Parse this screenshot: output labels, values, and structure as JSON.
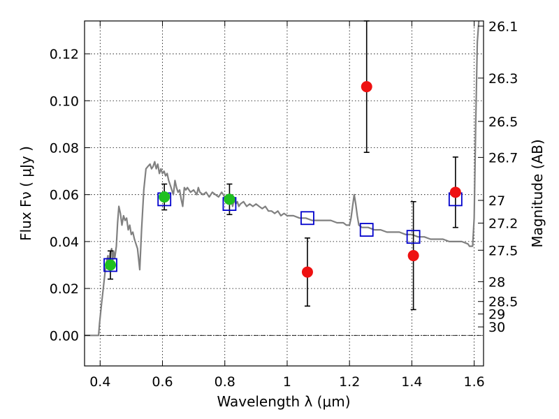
{
  "chart_data": {
    "type": "scatter",
    "title": "",
    "xlabel": "Wavelength  λ (μm)",
    "ylabel": "Flux  Fν  ( μJy )",
    "ylabel_right": "Magnitude (AB)",
    "xlim": [
      0.35,
      1.63
    ],
    "ylim": [
      -0.013,
      0.134
    ],
    "grid": true,
    "x_ticks": [
      0.4,
      0.6,
      0.8,
      1.0,
      1.2,
      1.4,
      1.6
    ],
    "x_tick_labels": [
      "0.4",
      "0.6",
      "0.8",
      "1",
      "1.2",
      "1.4",
      "1.6"
    ],
    "y_ticks": [
      0.0,
      0.02,
      0.04,
      0.06,
      0.08,
      0.1,
      0.12
    ],
    "y_tick_labels": [
      "0.00",
      "0.02",
      "0.04",
      "0.06",
      "0.08",
      "0.10",
      "0.12"
    ],
    "right_ticks_mag": [
      26.1,
      26.3,
      26.5,
      26.7,
      27,
      27.2,
      27.5,
      28,
      28.5,
      29,
      30
    ],
    "right_tick_labels": [
      "26.1",
      "26.3",
      "26.5",
      "26.7",
      "27",
      "27.2",
      "27.5",
      "28",
      "28.5",
      "29",
      "30"
    ],
    "series": [
      {
        "kind": "line",
        "color": "#808080",
        "points": [
          [
            0.35,
            0.0
          ],
          [
            0.375,
            0.0
          ],
          [
            0.395,
            0.0
          ],
          [
            0.398,
            0.005
          ],
          [
            0.405,
            0.014
          ],
          [
            0.41,
            0.02
          ],
          [
            0.415,
            0.026
          ],
          [
            0.42,
            0.031
          ],
          [
            0.425,
            0.034
          ],
          [
            0.428,
            0.029
          ],
          [
            0.432,
            0.035
          ],
          [
            0.437,
            0.037
          ],
          [
            0.44,
            0.031
          ],
          [
            0.443,
            0.036
          ],
          [
            0.447,
            0.033
          ],
          [
            0.452,
            0.038
          ],
          [
            0.456,
            0.048
          ],
          [
            0.46,
            0.055
          ],
          [
            0.465,
            0.052
          ],
          [
            0.47,
            0.047
          ],
          [
            0.475,
            0.051
          ],
          [
            0.48,
            0.049
          ],
          [
            0.485,
            0.05
          ],
          [
            0.49,
            0.045
          ],
          [
            0.495,
            0.047
          ],
          [
            0.5,
            0.043
          ],
          [
            0.505,
            0.044
          ],
          [
            0.51,
            0.041
          ],
          [
            0.515,
            0.039
          ],
          [
            0.52,
            0.037
          ],
          [
            0.527,
            0.028
          ],
          [
            0.533,
            0.045
          ],
          [
            0.54,
            0.062
          ],
          [
            0.547,
            0.071
          ],
          [
            0.553,
            0.072
          ],
          [
            0.56,
            0.073
          ],
          [
            0.565,
            0.071
          ],
          [
            0.57,
            0.072
          ],
          [
            0.575,
            0.074
          ],
          [
            0.58,
            0.071
          ],
          [
            0.585,
            0.073
          ],
          [
            0.59,
            0.069
          ],
          [
            0.595,
            0.071
          ],
          [
            0.6,
            0.069
          ],
          [
            0.605,
            0.07
          ],
          [
            0.61,
            0.068
          ],
          [
            0.615,
            0.069
          ],
          [
            0.62,
            0.066
          ],
          [
            0.625,
            0.064
          ],
          [
            0.63,
            0.062
          ],
          [
            0.635,
            0.06
          ],
          [
            0.64,
            0.066
          ],
          [
            0.645,
            0.063
          ],
          [
            0.65,
            0.061
          ],
          [
            0.655,
            0.062
          ],
          [
            0.66,
            0.058
          ],
          [
            0.665,
            0.055
          ],
          [
            0.67,
            0.063
          ],
          [
            0.675,
            0.062
          ],
          [
            0.68,
            0.063
          ],
          [
            0.69,
            0.061
          ],
          [
            0.7,
            0.062
          ],
          [
            0.71,
            0.06
          ],
          [
            0.715,
            0.063
          ],
          [
            0.72,
            0.061
          ],
          [
            0.73,
            0.06
          ],
          [
            0.74,
            0.061
          ],
          [
            0.75,
            0.059
          ],
          [
            0.76,
            0.061
          ],
          [
            0.77,
            0.06
          ],
          [
            0.78,
            0.059
          ],
          [
            0.79,
            0.061
          ],
          [
            0.8,
            0.059
          ],
          [
            0.81,
            0.058
          ],
          [
            0.82,
            0.059
          ],
          [
            0.825,
            0.055
          ],
          [
            0.83,
            0.058
          ],
          [
            0.835,
            0.056
          ],
          [
            0.84,
            0.057
          ],
          [
            0.845,
            0.055
          ],
          [
            0.85,
            0.056
          ],
          [
            0.86,
            0.057
          ],
          [
            0.87,
            0.055
          ],
          [
            0.88,
            0.056
          ],
          [
            0.89,
            0.055
          ],
          [
            0.9,
            0.056
          ],
          [
            0.91,
            0.055
          ],
          [
            0.92,
            0.054
          ],
          [
            0.93,
            0.055
          ],
          [
            0.94,
            0.053
          ],
          [
            0.95,
            0.053
          ],
          [
            0.96,
            0.052
          ],
          [
            0.97,
            0.053
          ],
          [
            0.98,
            0.051
          ],
          [
            0.99,
            0.052
          ],
          [
            1.0,
            0.051
          ],
          [
            1.02,
            0.051
          ],
          [
            1.04,
            0.05
          ],
          [
            1.06,
            0.05
          ],
          [
            1.08,
            0.049
          ],
          [
            1.1,
            0.049
          ],
          [
            1.12,
            0.049
          ],
          [
            1.14,
            0.049
          ],
          [
            1.16,
            0.048
          ],
          [
            1.18,
            0.048
          ],
          [
            1.19,
            0.047
          ],
          [
            1.2,
            0.047
          ],
          [
            1.205,
            0.05
          ],
          [
            1.21,
            0.055
          ],
          [
            1.215,
            0.06
          ],
          [
            1.22,
            0.056
          ],
          [
            1.225,
            0.051
          ],
          [
            1.23,
            0.047
          ],
          [
            1.24,
            0.046
          ],
          [
            1.26,
            0.046
          ],
          [
            1.28,
            0.045
          ],
          [
            1.3,
            0.045
          ],
          [
            1.32,
            0.044
          ],
          [
            1.34,
            0.044
          ],
          [
            1.36,
            0.044
          ],
          [
            1.38,
            0.043
          ],
          [
            1.4,
            0.043
          ],
          [
            1.42,
            0.042
          ],
          [
            1.44,
            0.042
          ],
          [
            1.46,
            0.041
          ],
          [
            1.48,
            0.041
          ],
          [
            1.5,
            0.041
          ],
          [
            1.52,
            0.04
          ],
          [
            1.54,
            0.04
          ],
          [
            1.56,
            0.04
          ],
          [
            1.58,
            0.039
          ],
          [
            1.585,
            0.038
          ],
          [
            1.59,
            0.038
          ],
          [
            1.595,
            0.038
          ],
          [
            1.6,
            0.05
          ],
          [
            1.605,
            0.09
          ],
          [
            1.61,
            0.125
          ],
          [
            1.615,
            0.134
          ]
        ]
      },
      {
        "kind": "open-square",
        "color": "#0000cc",
        "points": [
          [
            0.433,
            0.03
          ],
          [
            0.606,
            0.058
          ],
          [
            0.815,
            0.056
          ],
          [
            1.065,
            0.05
          ],
          [
            1.255,
            0.045
          ],
          [
            1.405,
            0.042
          ],
          [
            1.54,
            0.058
          ]
        ]
      },
      {
        "kind": "circle-errorbar",
        "color": "#20c020",
        "points": [
          {
            "x": 0.433,
            "y": 0.03,
            "err": 0.006
          },
          {
            "x": 0.606,
            "y": 0.059,
            "err": 0.0055
          },
          {
            "x": 0.815,
            "y": 0.058,
            "err": 0.0065
          }
        ]
      },
      {
        "kind": "circle-errorbar",
        "color": "#ee1111",
        "points": [
          {
            "x": 1.065,
            "y": 0.027,
            "err": 0.0145
          },
          {
            "x": 1.255,
            "y": 0.106,
            "err": 0.028
          },
          {
            "x": 1.405,
            "y": 0.034,
            "err": 0.023
          },
          {
            "x": 1.54,
            "y": 0.061,
            "err": 0.015
          }
        ]
      }
    ]
  }
}
